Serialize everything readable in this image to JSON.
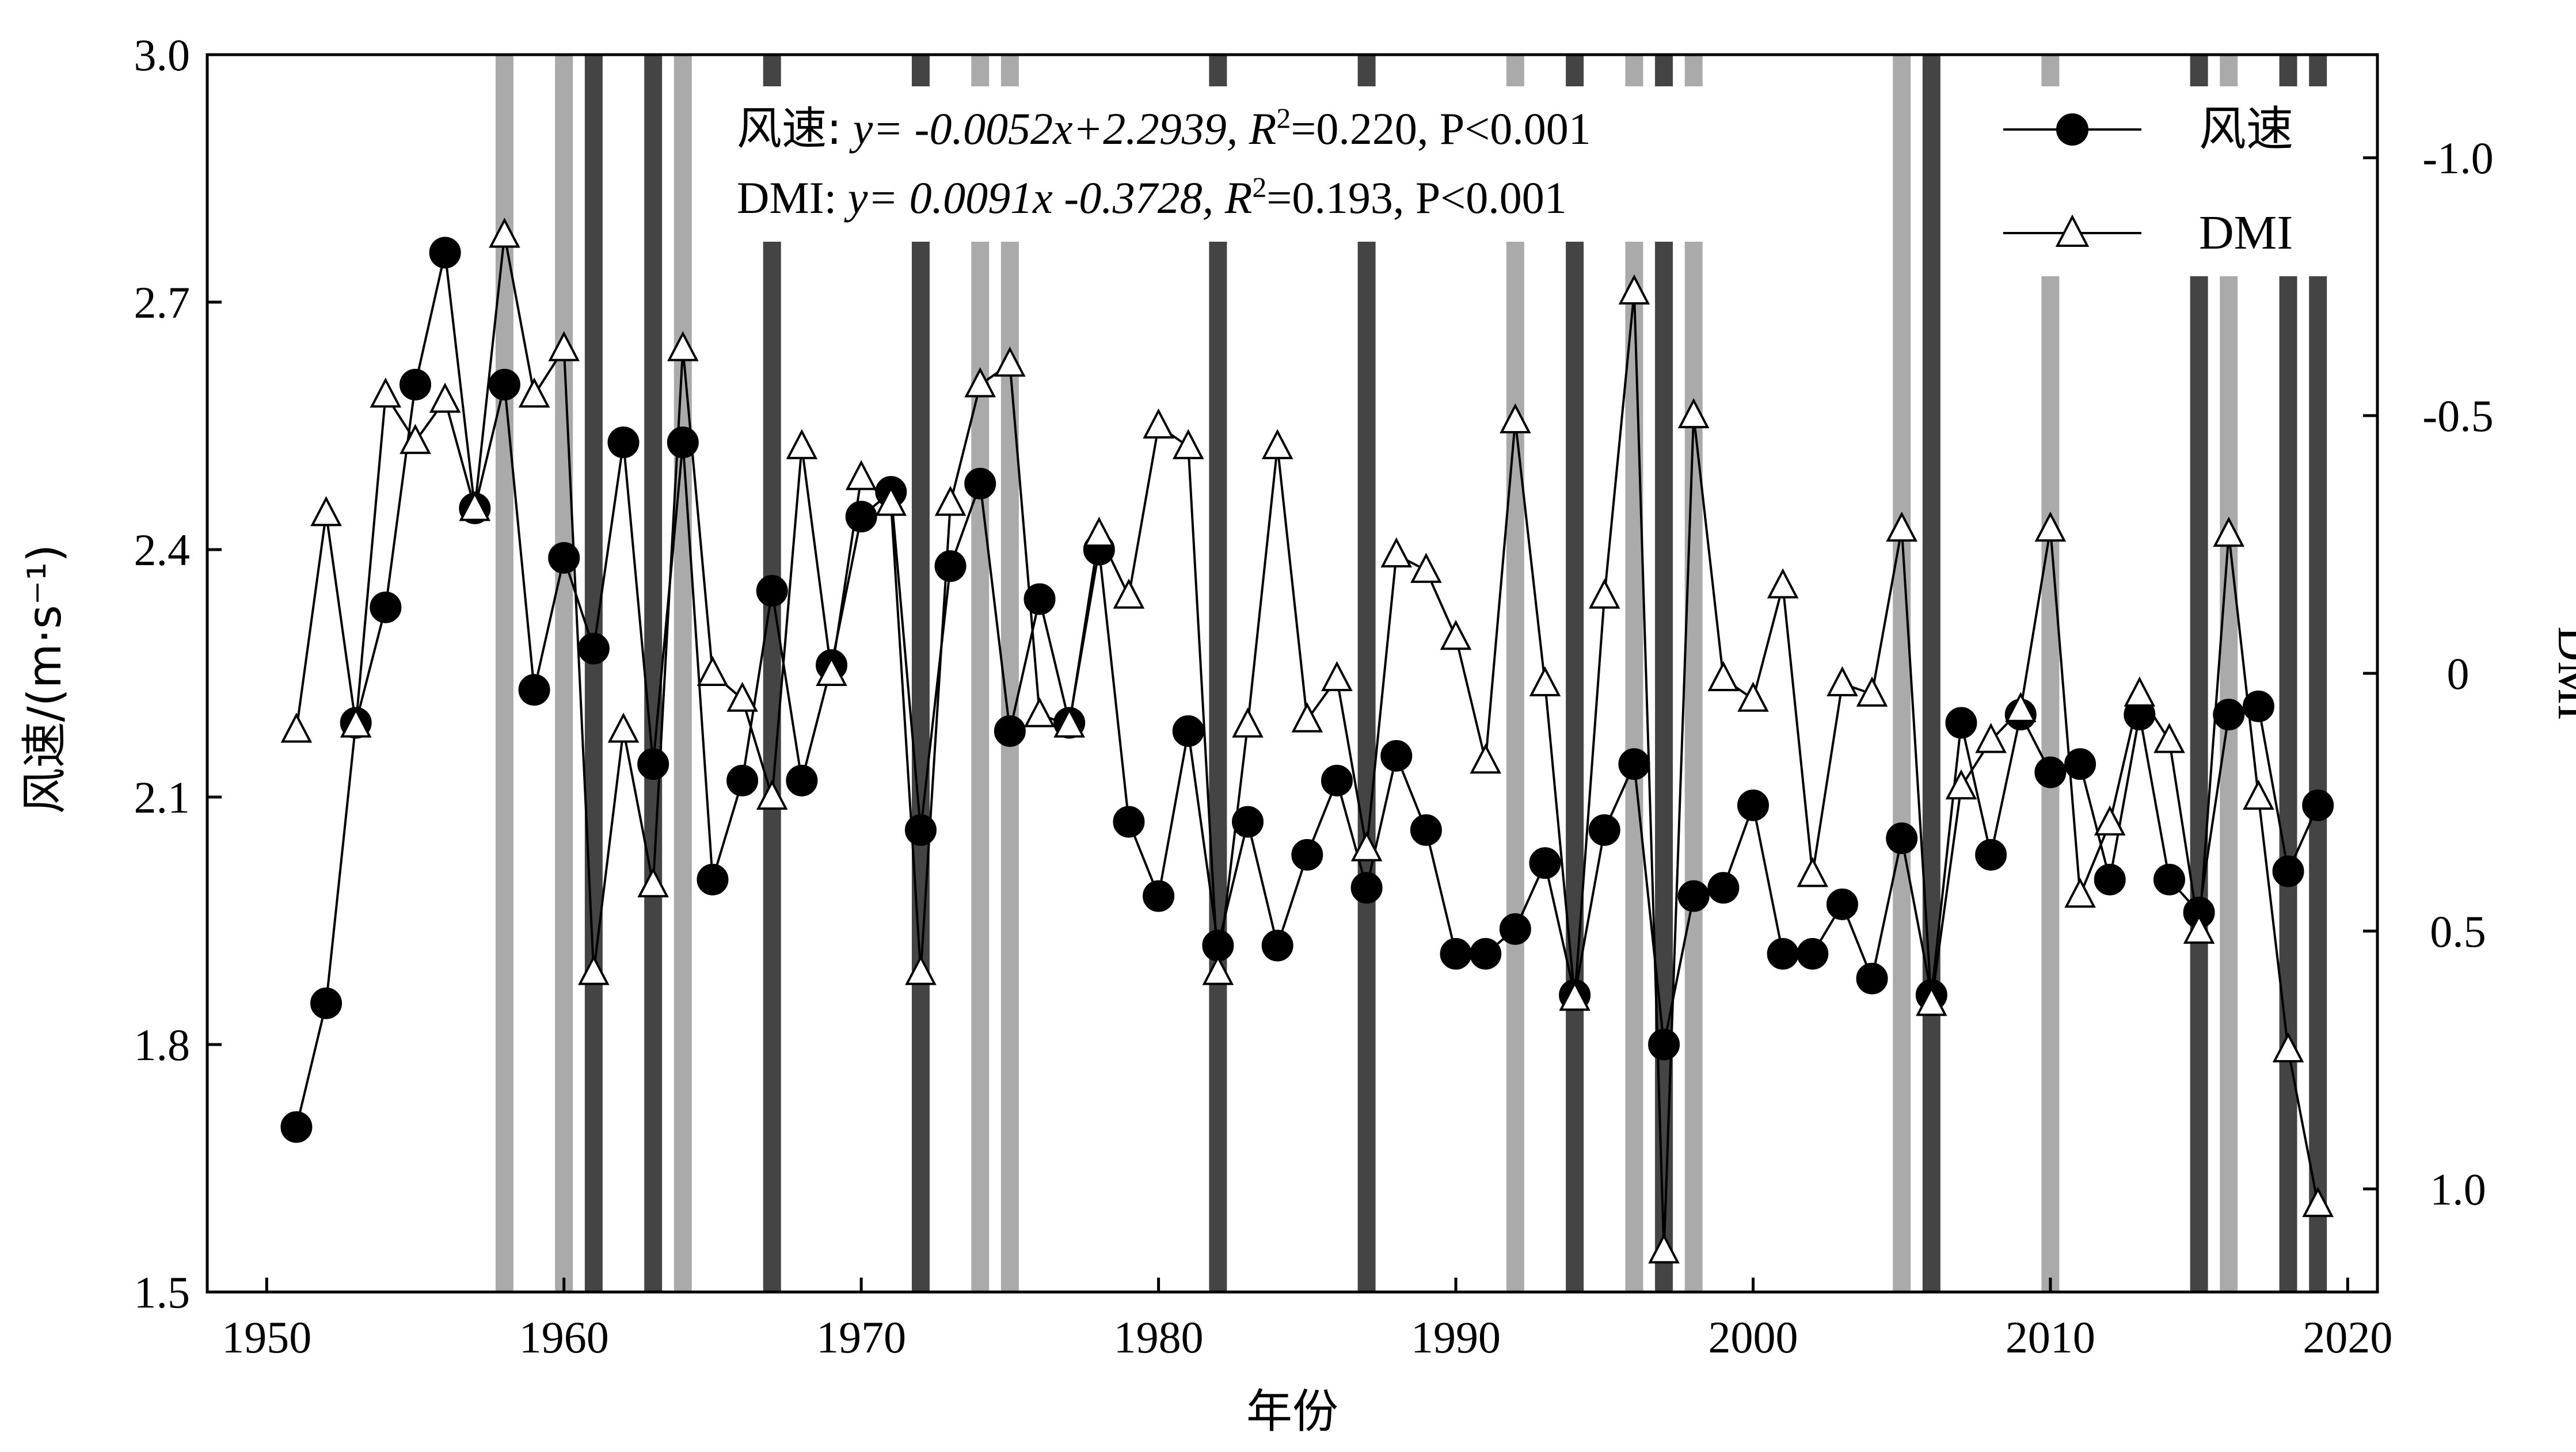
{
  "chart_data": {
    "type": "line",
    "xlabel": "年份",
    "ylabel_left": "风速/(m·s⁻¹)",
    "ylabel_right": "DMI",
    "xlim": [
      1948,
      2021
    ],
    "ylim_left": [
      1.5,
      3.0
    ],
    "ylim_right_top": -1.2,
    "ylim_right_bottom": 1.2,
    "right_axis_inverted": true,
    "x_ticks": [
      "1950",
      "1960",
      "1970",
      "1980",
      "1990",
      "2000",
      "2010",
      "2020"
    ],
    "y_left_ticks": [
      "1.5",
      "1.8",
      "2.1",
      "2.4",
      "2.7",
      "3.0"
    ],
    "y_right_ticks": [
      "-1.0",
      "-0.5",
      "0",
      "0.5",
      "1.0"
    ],
    "x_tick_values": [
      1950,
      1960,
      1970,
      1980,
      1990,
      2000,
      2010,
      2020
    ],
    "y_left_tick_values": [
      1.5,
      1.8,
      2.1,
      2.4,
      2.7,
      3.0
    ],
    "y_right_tick_values": [
      -1.0,
      -0.5,
      0,
      0.5,
      1.0
    ],
    "equations": {
      "wind": {
        "prefix": "风速:",
        "text_a": " y= -0.0052x+2.2939, R",
        "text_b": "=0.220, P<0.001"
      },
      "dmi": {
        "prefix": "DMI:",
        "text_a": " y=  0.0091x -0.3728, R",
        "text_b": "=0.193, P<0.001"
      },
      "sup2": "2"
    },
    "legend": {
      "placement": "top-right",
      "wind_label": "风速",
      "dmi_label": "DMI"
    },
    "positive_iod_years": [
      1958,
      1960,
      1964,
      1974,
      1975,
      1992,
      1996,
      1998,
      2005,
      2010,
      2016
    ],
    "negative_iod_years": [
      1961,
      1963,
      1967,
      1972,
      1982,
      1987,
      1994,
      1997,
      2006,
      2015,
      2018,
      2019
    ],
    "colors": {
      "positive_band": "#aaaaaa",
      "negative_band": "#444444",
      "line": "#000000"
    },
    "series": [
      {
        "name": "风速",
        "axis": "left",
        "marker": "filled-circle",
        "x": [
          1951,
          1952,
          1953,
          1954,
          1955,
          1956,
          1957,
          1958,
          1959,
          1960,
          1961,
          1962,
          1963,
          1964,
          1965,
          1966,
          1967,
          1968,
          1969,
          1970,
          1971,
          1972,
          1973,
          1974,
          1975,
          1976,
          1977,
          1978,
          1979,
          1980,
          1981,
          1982,
          1983,
          1984,
          1985,
          1986,
          1987,
          1988,
          1989,
          1990,
          1991,
          1992,
          1993,
          1994,
          1995,
          1996,
          1997,
          1998,
          1999,
          2000,
          2001,
          2002,
          2003,
          2004,
          2005,
          2006,
          2007,
          2008,
          2009,
          2010,
          2011,
          2012,
          2013,
          2014,
          2015,
          2016,
          2017,
          2018,
          2019
        ],
        "values": [
          1.7,
          1.85,
          2.19,
          2.33,
          2.6,
          2.76,
          2.45,
          2.6,
          2.23,
          2.39,
          2.28,
          2.53,
          2.14,
          2.53,
          2.0,
          2.12,
          2.35,
          2.12,
          2.26,
          2.44,
          2.47,
          2.06,
          2.38,
          2.48,
          2.18,
          2.34,
          2.19,
          2.4,
          2.07,
          1.98,
          2.18,
          1.92,
          2.07,
          1.92,
          2.03,
          2.12,
          1.99,
          2.15,
          2.06,
          1.91,
          1.91,
          1.94,
          2.02,
          1.86,
          2.06,
          2.14,
          1.8,
          1.98,
          1.99,
          2.09,
          1.91,
          1.91,
          1.97,
          1.88,
          2.05,
          1.86,
          2.19,
          2.03,
          2.2,
          2.13,
          2.14,
          2.0,
          2.2,
          2.0,
          1.96,
          2.2,
          2.21,
          2.01,
          2.09
        ]
      },
      {
        "name": "DMI",
        "axis": "right",
        "marker": "open-triangle",
        "x": [
          1951,
          1952,
          1953,
          1954,
          1955,
          1956,
          1957,
          1958,
          1959,
          1960,
          1961,
          1962,
          1963,
          1964,
          1965,
          1966,
          1967,
          1968,
          1969,
          1970,
          1971,
          1972,
          1973,
          1974,
          1975,
          1976,
          1977,
          1978,
          1979,
          1980,
          1981,
          1982,
          1983,
          1984,
          1985,
          1986,
          1987,
          1988,
          1989,
          1990,
          1991,
          1992,
          1993,
          1994,
          1995,
          1996,
          1997,
          1998,
          1999,
          2000,
          2001,
          2002,
          2003,
          2004,
          2005,
          2006,
          2007,
          2008,
          2009,
          2010,
          2011,
          2012,
          2013,
          2014,
          2015,
          2016,
          2017,
          2018,
          2019
        ],
        "values": [
          0.11,
          -0.31,
          0.1,
          -0.54,
          -0.45,
          -0.53,
          -0.32,
          -0.85,
          -0.54,
          -0.63,
          0.58,
          0.11,
          0.41,
          -0.63,
          0.0,
          0.05,
          0.24,
          -0.44,
          0.0,
          -0.38,
          -0.33,
          0.58,
          -0.33,
          -0.56,
          -0.6,
          0.08,
          0.1,
          -0.27,
          -0.15,
          -0.48,
          -0.44,
          0.58,
          0.1,
          -0.44,
          0.09,
          0.01,
          0.34,
          -0.23,
          -0.2,
          -0.07,
          0.17,
          -0.49,
          0.02,
          0.63,
          -0.15,
          -0.74,
          1.12,
          -0.5,
          0.01,
          0.05,
          -0.17,
          0.39,
          0.02,
          0.04,
          -0.28,
          0.64,
          0.22,
          0.13,
          0.07,
          -0.28,
          0.43,
          0.29,
          0.04,
          0.13,
          0.5,
          -0.27,
          0.24,
          0.73,
          1.03
        ]
      }
    ]
  }
}
